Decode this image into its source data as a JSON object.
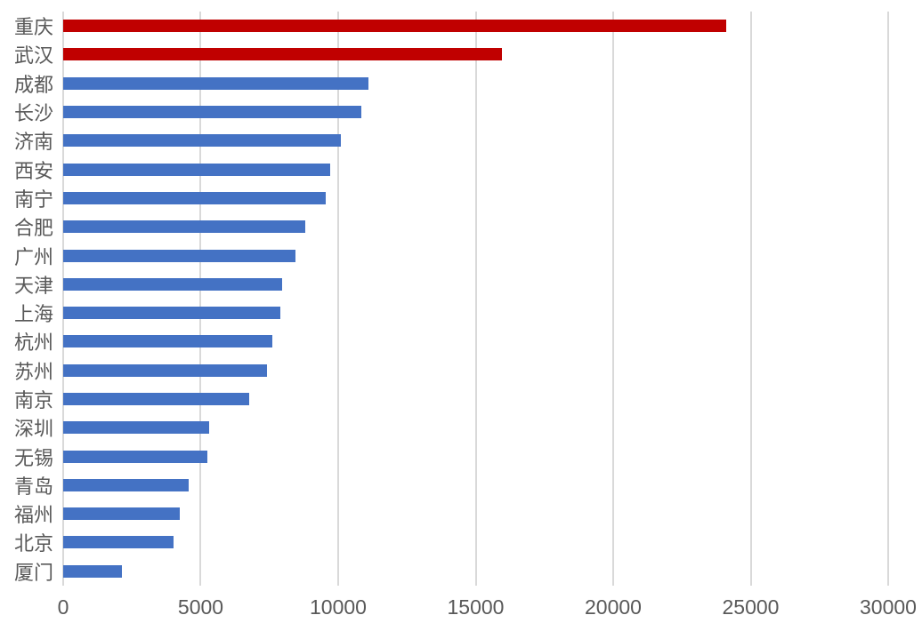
{
  "chart_data": {
    "type": "bar",
    "orientation": "horizontal",
    "categories": [
      "重庆",
      "武汉",
      "成都",
      "长沙",
      "济南",
      "西安",
      "南宁",
      "合肥",
      "广州",
      "天津",
      "上海",
      "杭州",
      "苏州",
      "南京",
      "深圳",
      "无锡",
      "青岛",
      "福州",
      "北京",
      "厦门"
    ],
    "values": [
      24100,
      15950,
      11100,
      10850,
      10100,
      9700,
      9550,
      8800,
      8450,
      7950,
      7900,
      7600,
      7400,
      6750,
      5300,
      5250,
      4550,
      4250,
      4000,
      2150
    ],
    "highlight_indices": [
      0,
      1
    ],
    "highlight_color": "#C00000",
    "bar_color": "#4472C4",
    "xlim": [
      0,
      30000
    ],
    "x_ticks": [
      0,
      5000,
      10000,
      15000,
      20000,
      25000,
      30000
    ],
    "grid": true,
    "gridline_color": "#D9D9D9",
    "text_color": "#595959",
    "background_color": "#FFFFFF",
    "legend": "none",
    "title": ""
  }
}
